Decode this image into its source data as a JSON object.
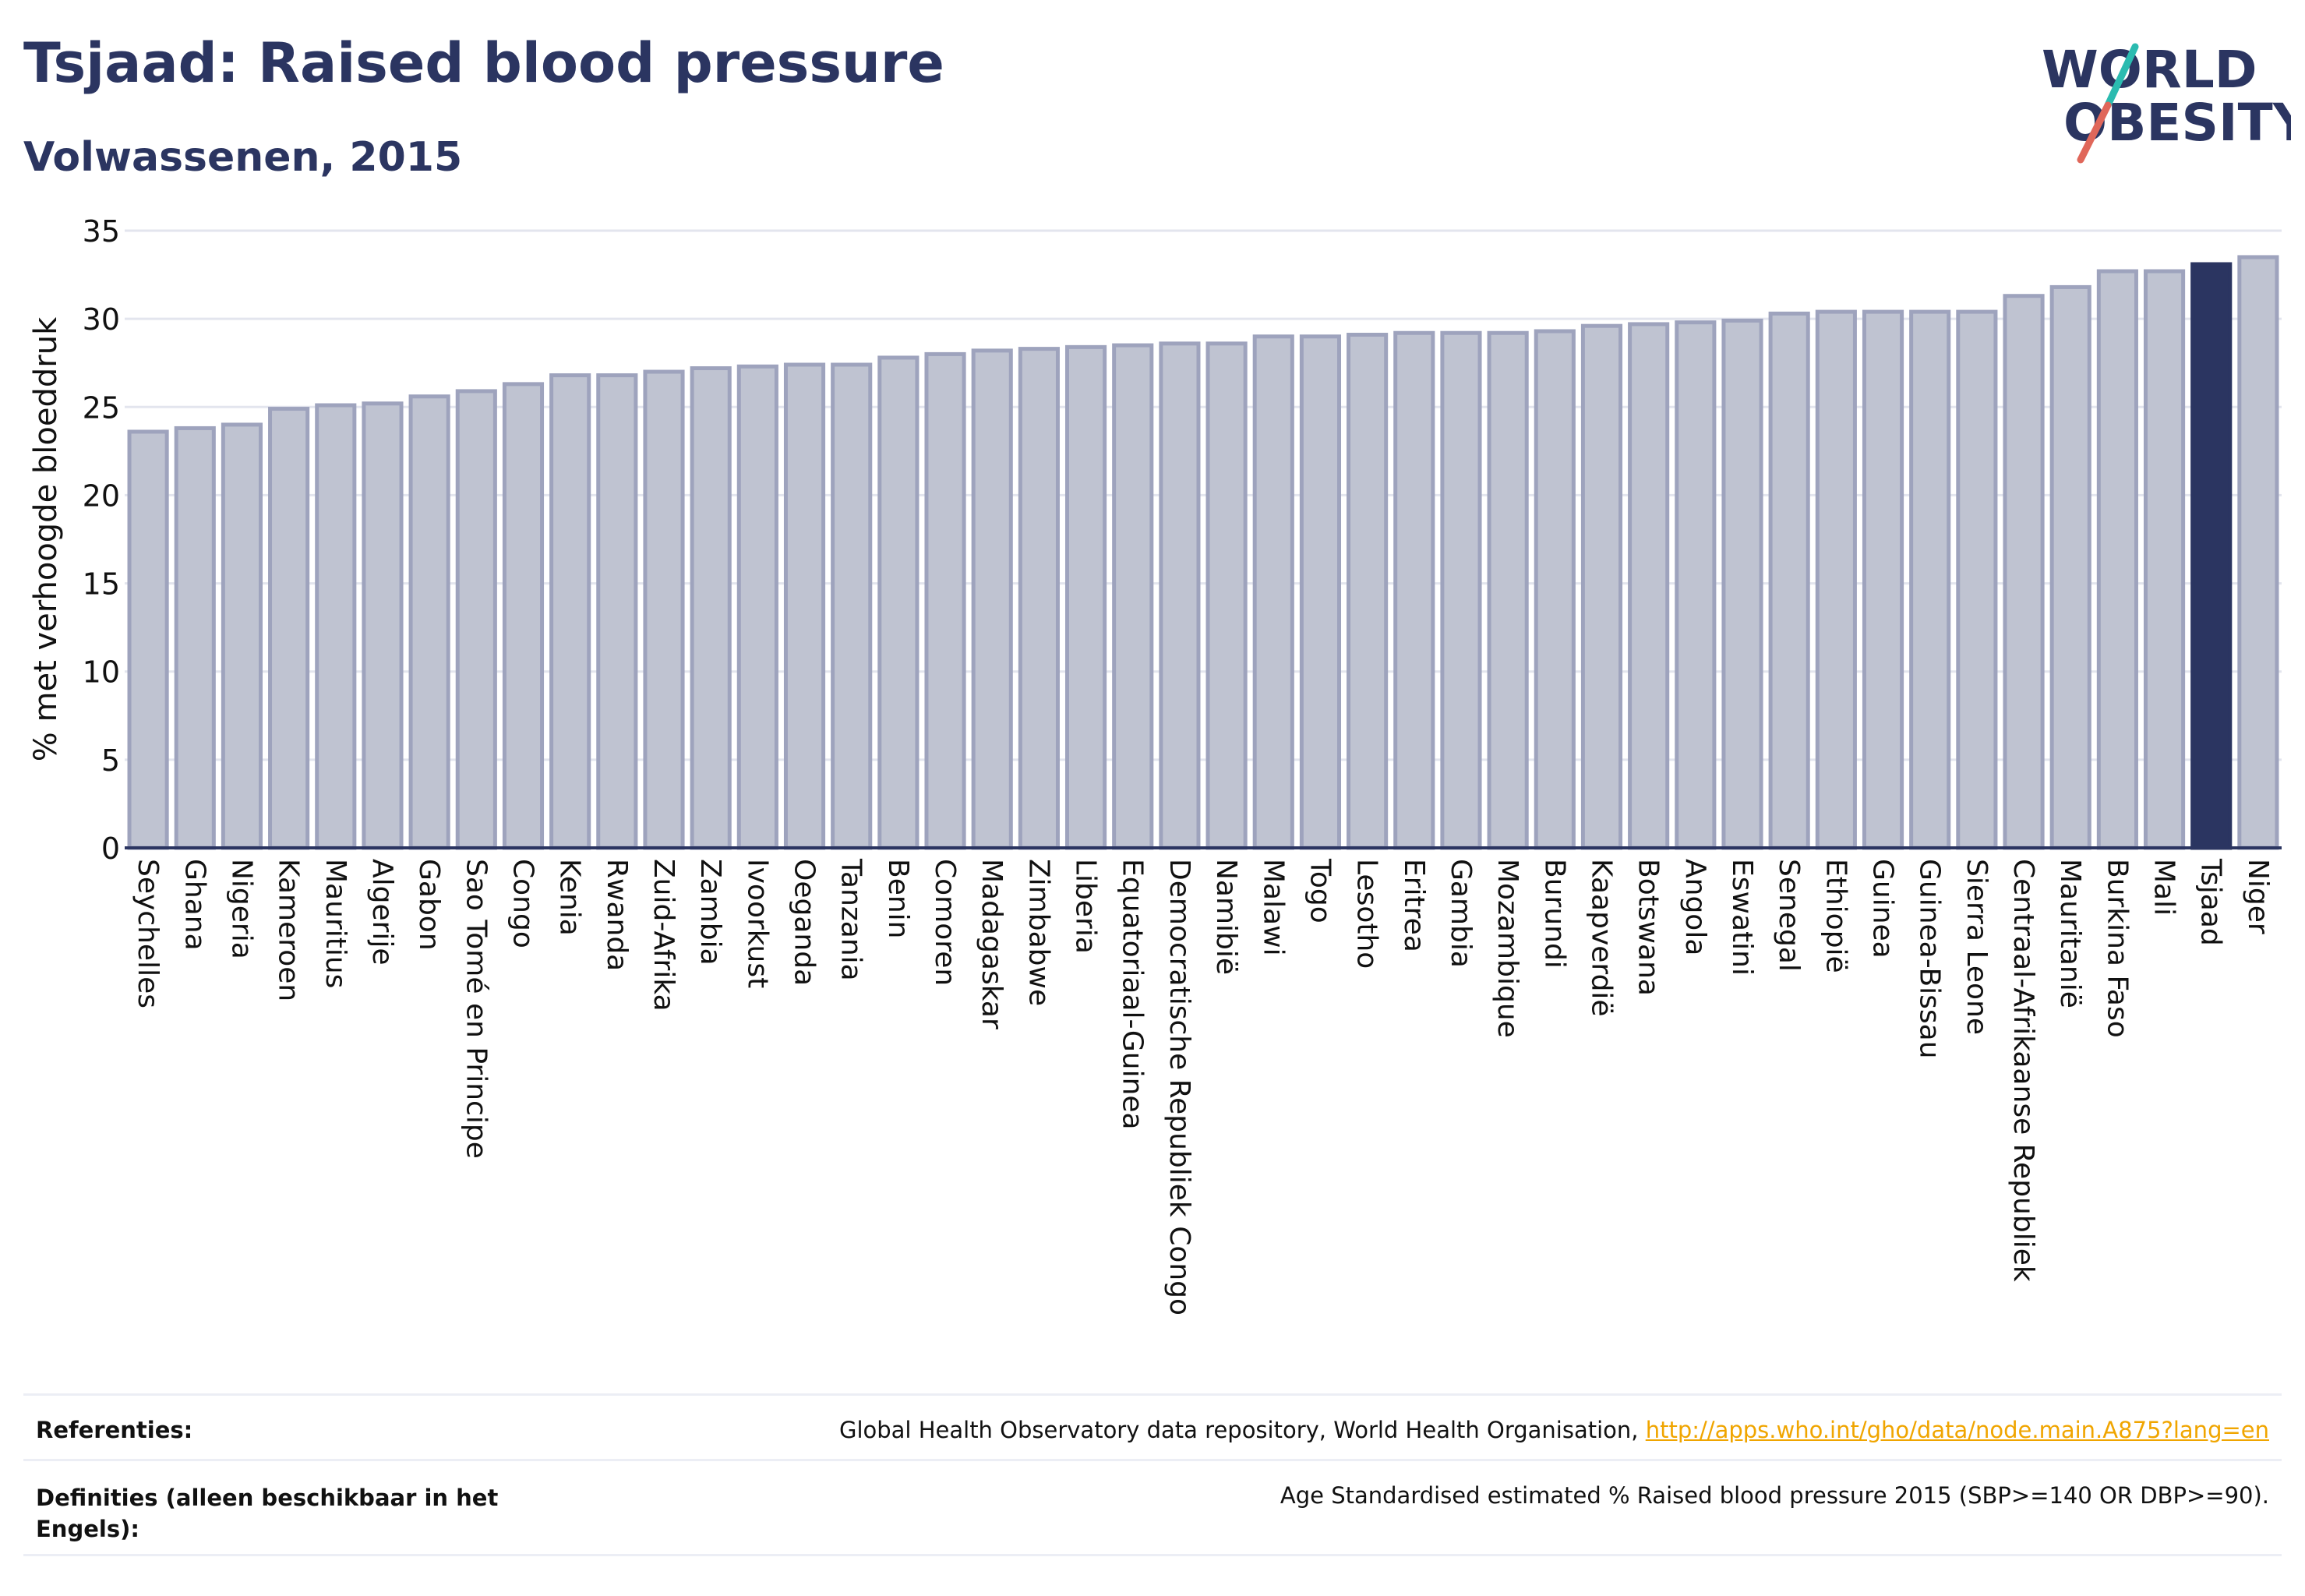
{
  "header": {
    "title": "Tsjaad: Raised blood pressure",
    "subtitle": "Volwassenen, 2015",
    "logo_line1": "WORLD",
    "logo_line2": "OBESITY"
  },
  "chart_data": {
    "type": "bar",
    "title": "Tsjaad: Raised blood pressure",
    "subtitle": "Volwassenen, 2015",
    "xlabel": "",
    "ylabel": "% met verhoogde bloeddruk",
    "ylim": [
      0,
      35
    ],
    "yticks": [
      0,
      5,
      10,
      15,
      20,
      25,
      30,
      35
    ],
    "grid": true,
    "highlight": "Tsjaad",
    "colors": {
      "bar": "#bfc3d1",
      "bar_edge": "#9ea3bd",
      "highlight": "#2b3561"
    },
    "categories": [
      "Seychelles",
      "Ghana",
      "Nigeria",
      "Kameroen",
      "Mauritius",
      "Algerije",
      "Gabon",
      "Sao Tomé en Principe",
      "Congo",
      "Kenia",
      "Rwanda",
      "Zuid-Afrika",
      "Zambia",
      "Ivoorkust",
      "Oeganda",
      "Tanzania",
      "Benin",
      "Comoren",
      "Madagaskar",
      "Zimbabwe",
      "Liberia",
      "Equatoriaal-Guinea",
      "Democratische Republiek Congo",
      "Namibië",
      "Malawi",
      "Togo",
      "Lesotho",
      "Eritrea",
      "Gambia",
      "Mozambique",
      "Burundi",
      "Kaapverdië",
      "Botswana",
      "Angola",
      "Eswatini",
      "Senegal",
      "Ethiopië",
      "Guinea",
      "Guinea-Bissau",
      "Sierra Leone",
      "Centraal-Afrikaanse Republiek",
      "Mauritanië",
      "Burkina Faso",
      "Mali",
      "Tsjaad",
      "Niger"
    ],
    "values": [
      23.6,
      23.8,
      24.0,
      24.9,
      25.1,
      25.2,
      25.6,
      25.9,
      26.3,
      26.8,
      26.8,
      27.0,
      27.2,
      27.3,
      27.4,
      27.4,
      27.8,
      28.0,
      28.2,
      28.3,
      28.4,
      28.5,
      28.6,
      28.6,
      29.0,
      29.0,
      29.1,
      29.2,
      29.2,
      29.2,
      29.3,
      29.6,
      29.7,
      29.8,
      29.9,
      30.3,
      30.4,
      30.4,
      30.4,
      30.4,
      31.3,
      31.8,
      32.7,
      32.7,
      33.1,
      33.5
    ]
  },
  "references": {
    "ref_label": "Referenties:",
    "ref_text": "Global Health Observatory data repository, World Health Organisation,",
    "ref_link": "http://apps.who.int/gho/data/node.main.A875?lang=en",
    "def_label_1": "Definities (alleen beschikbaar in het",
    "def_label_2": "Engels):",
    "def_text": "Age Standardised estimated % Raised blood pressure 2015 (SBP>=140 OR DBP>=90)."
  }
}
